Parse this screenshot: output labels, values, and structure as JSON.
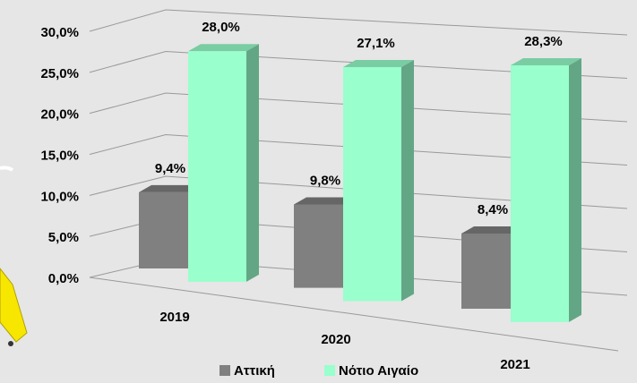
{
  "chart_data": {
    "type": "bar3d",
    "categories": [
      "2019",
      "2020",
      "2021"
    ],
    "series": [
      {
        "name": "Αττική",
        "color": "#808080",
        "values": [
          9.4,
          9.8,
          8.4
        ],
        "value_labels": [
          "9,4%",
          "9,8%",
          "8,4%"
        ]
      },
      {
        "name": "Νότιο Αιγαίο",
        "color": "#99ffcc",
        "values": [
          28.0,
          27.1,
          28.3
        ],
        "value_labels": [
          "28,0%",
          "27,1%",
          "28,3%"
        ]
      }
    ],
    "ylim": [
      0,
      30
    ],
    "yticks": [
      {
        "value": 0,
        "label": "0,0%"
      },
      {
        "value": 5,
        "label": "5,0%"
      },
      {
        "value": 10,
        "label": "10,0%"
      },
      {
        "value": 15,
        "label": "15,0%"
      },
      {
        "value": 20,
        "label": "20,0%"
      },
      {
        "value": 25,
        "label": "25,0%"
      },
      {
        "value": 30,
        "label": "30,0%"
      }
    ],
    "grid": true,
    "legend": "bottom"
  }
}
